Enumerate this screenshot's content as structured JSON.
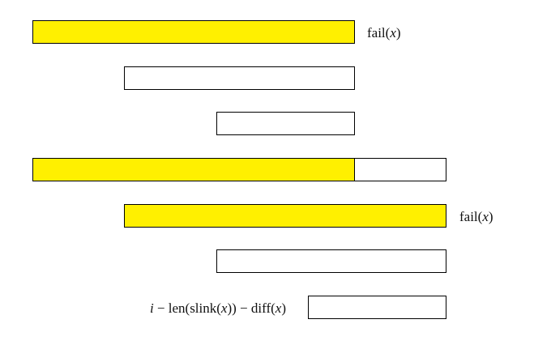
{
  "colors": {
    "highlight": "#FFF000",
    "plain": "#FFFFFF",
    "stroke": "#000000"
  },
  "labels": {
    "row1": {
      "func": "fail(",
      "var": "x",
      "close": ")"
    },
    "row5": {
      "func": "fail(",
      "var": "x",
      "close": ")"
    },
    "row7": {
      "i": "i",
      "rest1": " − len(slink(",
      "x1": "x",
      "rest2": ")) − diff(",
      "x2": "x",
      "rest3": ")"
    }
  }
}
